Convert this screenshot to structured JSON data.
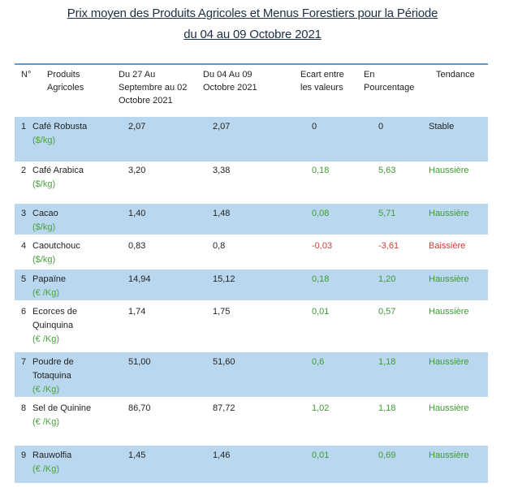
{
  "title_line1": "Prix moyen des Produits Agricoles et Menus Forestiers pour la Période",
  "title_line2": "du 04 au 09  Octobre  2021",
  "headers": {
    "num": "N°",
    "product": "Produits\nAgricoles",
    "period1": "Du 27 Au\nSeptembre au 02\nOctobre 2021",
    "period2": "Du 04 Au 09\nOctobre 2021",
    "ecart": "Ecart entre\nles valeurs",
    "pct": "En\nPourcentage",
    "trend": "Tendance"
  },
  "rows": [
    {
      "num": "1",
      "product": "Café Robusta",
      "unit": "($/kg)",
      "p1": "2,07",
      "p2": "2,07",
      "ecart": "0",
      "pct": "0",
      "trend": "Stable",
      "status": "neutral"
    },
    {
      "num": "2",
      "product": "Café Arabica",
      "unit": "($/kg)",
      "p1": "3,20",
      "p2": "3,38",
      "ecart": "0,18",
      "pct": "5,63",
      "trend": "Haussière",
      "status": "up"
    },
    {
      "num": "3",
      "product": "Cacao",
      "unit": "($/kg)",
      "p1": "1,40",
      "p2": "1,48",
      "ecart": "0,08",
      "pct": "5,71",
      "trend": "Haussière",
      "status": "up"
    },
    {
      "num": "4",
      "product": "Caoutchouc",
      "unit": "($/kg)",
      "p1": "0,83",
      "p2": "0,8",
      "ecart": "-0,03",
      "pct": "-3,61",
      "trend": "Baissière",
      "status": "down"
    },
    {
      "num": "5",
      "product": "Papaïne",
      "unit": "(€ /Kg)",
      "p1": "14,94",
      "p2": "15,12",
      "ecart": "0,18",
      "pct": "1,20",
      "trend": "Haussière",
      "status": "up"
    },
    {
      "num": "6",
      "product": "Ecorces de\nQuinquina",
      "unit": "(€ /Kg)",
      "p1": "1,74",
      "p2": "1,75",
      "ecart": "0,01",
      "pct": "0,57",
      "trend": "Haussière",
      "status": "up"
    },
    {
      "num": "7",
      "product": "Poudre de\nTotaquina",
      "unit": "(€ /Kg)",
      "p1": "51,00",
      "p2": "51,60",
      "ecart": "0,6",
      "pct": "1,18",
      "trend": "Haussière",
      "status": "up"
    },
    {
      "num": "8",
      "product": "Sel de Quinine",
      "unit": "(€ /Kg)",
      "p1": "86,70",
      "p2": "87,72",
      "ecart": "1,02",
      "pct": "1,18",
      "trend": "Haussière",
      "status": "up"
    },
    {
      "num": "9",
      "product": "Rauwolfia",
      "unit": "(€ /Kg)",
      "p1": "1,45",
      "p2": "1,46",
      "ecart": "0,01",
      "pct": "0,69",
      "trend": "Haussière",
      "status": "up"
    }
  ]
}
